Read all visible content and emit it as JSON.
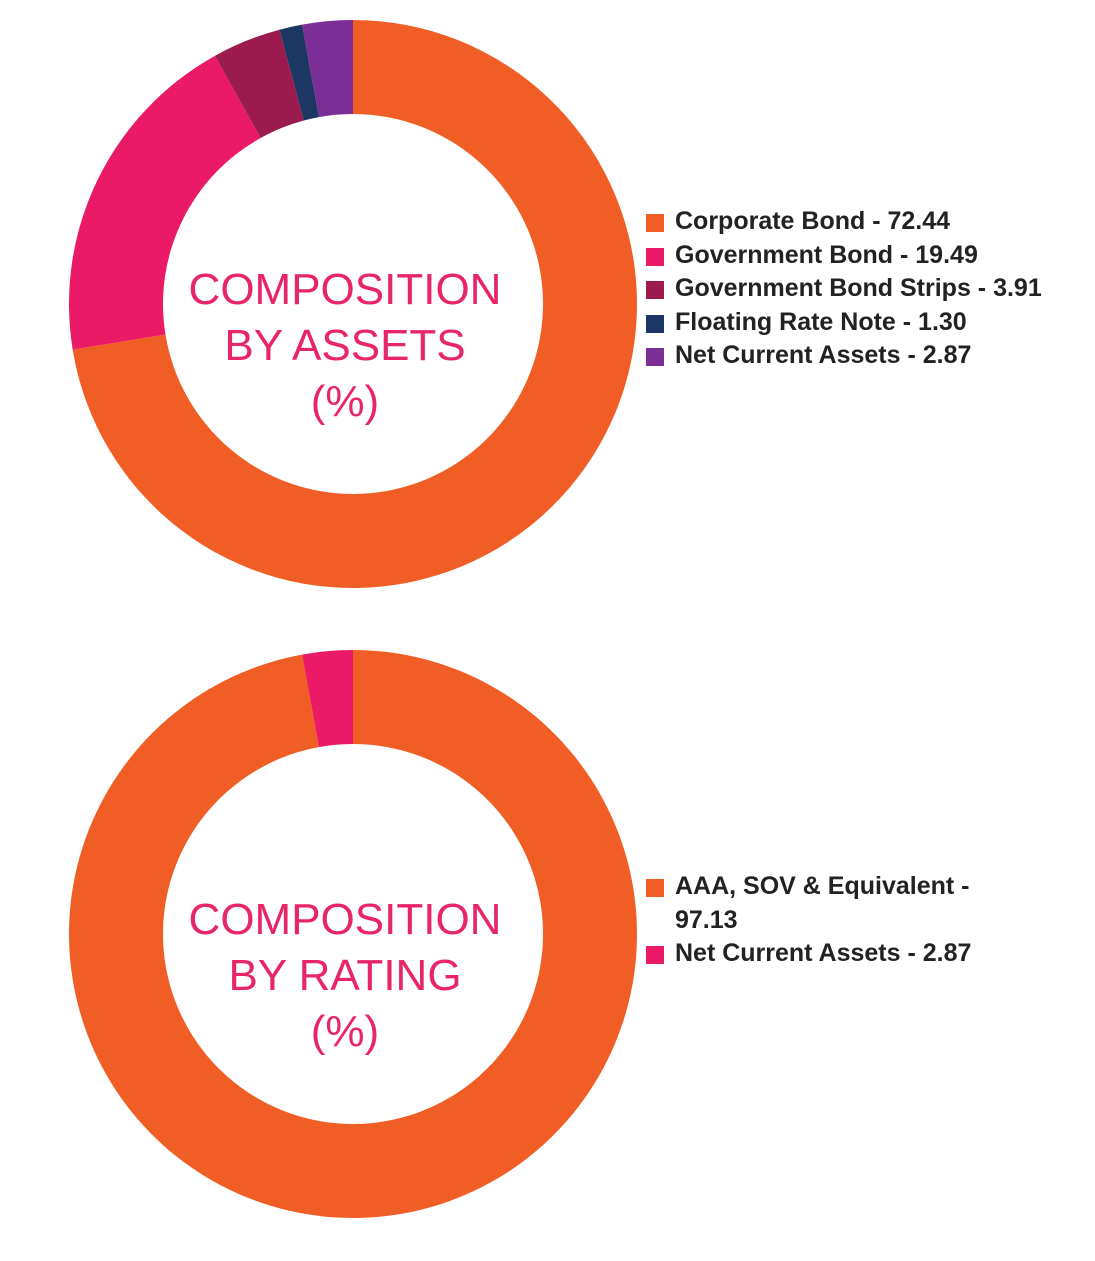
{
  "chart_data": [
    {
      "type": "pie",
      "title": "COMPOSITION BY ASSETS (%)",
      "title_lines": [
        "COMPOSITION",
        "BY ASSETS",
        "(%)"
      ],
      "categories": [
        "Corporate Bond",
        "Government Bond",
        "Government Bond Strips",
        "Floating Rate Note",
        "Net Current Assets"
      ],
      "values": [
        72.44,
        19.49,
        3.91,
        1.3,
        2.87
      ],
      "colors": [
        "#f15e25",
        "#eb1a67",
        "#9b1b4f",
        "#1d3764",
        "#7b2f96"
      ],
      "legend_labels": [
        "Corporate Bond - 72.44",
        "Government Bond - 19.49",
        "Government Bond Strips - 3.91",
        "Floating Rate Note - 1.30",
        "Net Current Assets - 2.87"
      ],
      "legend_position": "right",
      "style": "donut"
    },
    {
      "type": "pie",
      "title": "COMPOSITION BY RATING (%)",
      "title_lines": [
        "COMPOSITION",
        "BY RATING",
        "(%)"
      ],
      "categories": [
        "AAA, SOV & Equivalent",
        "Net Current Assets"
      ],
      "values": [
        97.13,
        2.87
      ],
      "colors": [
        "#f15e25",
        "#eb1a67"
      ],
      "legend_labels": [
        "AAA, SOV & Equivalent - 97.13",
        "Net Current Assets - 2.87"
      ],
      "legend_position": "right",
      "style": "donut"
    }
  ]
}
